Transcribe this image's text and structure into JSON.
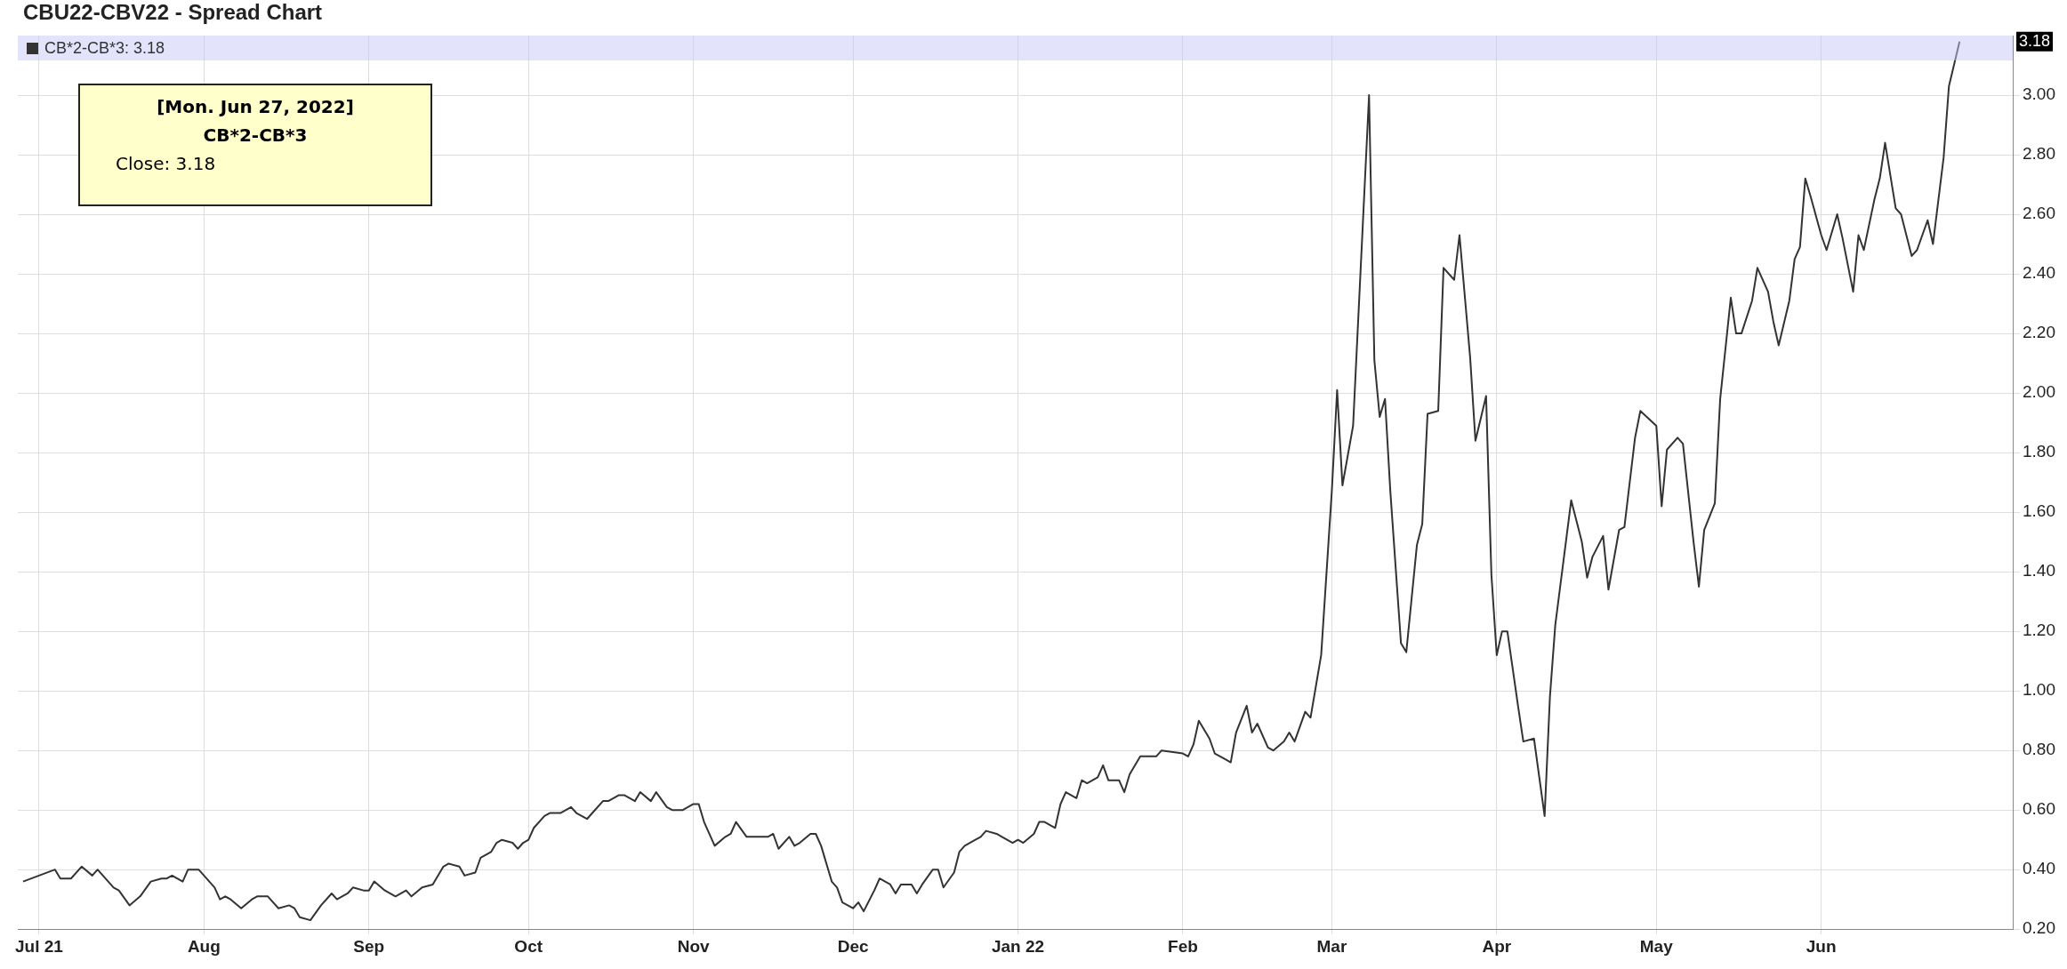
{
  "chart_data": {
    "type": "line",
    "title": "CBU22-CBV22 - Spread Chart",
    "annotations": [
      "[Mon. Jun 27, 2022]",
      "CB*2-CB*3",
      "Close: 3.18",
      "3.18"
    ],
    "legend": "top left",
    "grid": true,
    "marker": "none",
    "line_style": "solid",
    "xlim": [
      "2021-06-27",
      "2022-07-07"
    ],
    "xticks": [
      {
        "value": "2021-07-01",
        "label": "Jul 21"
      },
      {
        "value": "2021-08-01",
        "label": "Aug"
      },
      {
        "value": "2021-09-01",
        "label": "Sep"
      },
      {
        "value": "2021-10-01",
        "label": "Oct"
      },
      {
        "value": "2021-11-01",
        "label": "Nov"
      },
      {
        "value": "2021-12-01",
        "label": "Dec"
      },
      {
        "value": "2022-01-01",
        "label": "Jan 22"
      },
      {
        "value": "2022-02-01",
        "label": "Feb"
      },
      {
        "value": "2022-03-01",
        "label": "Mar"
      },
      {
        "value": "2022-04-01",
        "label": "Apr"
      },
      {
        "value": "2022-05-01",
        "label": "May"
      },
      {
        "value": "2022-06-01",
        "label": "Jun"
      }
    ],
    "ylim": [
      0.2,
      3.2
    ],
    "yticks": [
      {
        "value": 0.2,
        "label": "0.20"
      },
      {
        "value": 0.4,
        "label": "0.40"
      },
      {
        "value": 0.6,
        "label": "0.60"
      },
      {
        "value": 0.8,
        "label": "0.80"
      },
      {
        "value": 1.0,
        "label": "1.00"
      },
      {
        "value": 1.2,
        "label": "1.20"
      },
      {
        "value": 1.4,
        "label": "1.40"
      },
      {
        "value": 1.6,
        "label": "1.60"
      },
      {
        "value": 1.8,
        "label": "1.80"
      },
      {
        "value": 2.0,
        "label": "2.00"
      },
      {
        "value": 2.2,
        "label": "2.20"
      },
      {
        "value": 2.4,
        "label": "2.40"
      },
      {
        "value": 2.6,
        "label": "2.60"
      },
      {
        "value": 2.8,
        "label": "2.80"
      },
      {
        "value": 3.0,
        "label": "3.00"
      }
    ],
    "x": [
      "2021-06-28",
      "2021-07-01",
      "2021-07-04",
      "2021-07-05",
      "2021-07-07",
      "2021-07-09",
      "2021-07-11",
      "2021-07-12",
      "2021-07-15",
      "2021-07-16",
      "2021-07-18",
      "2021-07-20",
      "2021-07-22",
      "2021-07-24",
      "2021-07-25",
      "2021-07-26",
      "2021-07-28",
      "2021-07-29",
      "2021-07-31",
      "2021-08-03",
      "2021-08-04",
      "2021-08-05",
      "2021-08-06",
      "2021-08-08",
      "2021-08-10",
      "2021-08-11",
      "2021-08-13",
      "2021-08-15",
      "2021-08-17",
      "2021-08-18",
      "2021-08-19",
      "2021-08-21",
      "2021-08-23",
      "2021-08-25",
      "2021-08-26",
      "2021-08-28",
      "2021-08-29",
      "2021-08-31",
      "2021-09-01",
      "2021-09-02",
      "2021-09-04",
      "2021-09-06",
      "2021-09-08",
      "2021-09-09",
      "2021-09-11",
      "2021-09-13",
      "2021-09-15",
      "2021-09-16",
      "2021-09-18",
      "2021-09-19",
      "2021-09-21",
      "2021-09-22",
      "2021-09-24",
      "2021-09-25",
      "2021-09-26",
      "2021-09-28",
      "2021-09-29",
      "2021-09-30",
      "2021-10-01",
      "2021-10-02",
      "2021-10-04",
      "2021-10-05",
      "2021-10-07",
      "2021-10-09",
      "2021-10-10",
      "2021-10-12",
      "2021-10-13",
      "2021-10-15",
      "2021-10-16",
      "2021-10-18",
      "2021-10-19",
      "2021-10-21",
      "2021-10-22",
      "2021-10-24",
      "2021-10-25",
      "2021-10-27",
      "2021-10-28",
      "2021-10-30",
      "2021-11-01",
      "2021-11-02",
      "2021-11-03",
      "2021-11-05",
      "2021-11-07",
      "2021-11-08",
      "2021-11-09",
      "2021-11-11",
      "2021-11-15",
      "2021-11-16",
      "2021-11-17",
      "2021-11-19",
      "2021-11-20",
      "2021-11-21",
      "2021-11-23",
      "2021-11-24",
      "2021-11-25",
      "2021-11-27",
      "2021-11-28",
      "2021-11-29",
      "2021-12-01",
      "2021-12-02",
      "2021-12-03",
      "2021-12-05",
      "2021-12-06",
      "2021-12-08",
      "2021-12-09",
      "2021-12-10",
      "2021-12-12",
      "2021-12-13",
      "2021-12-14",
      "2021-12-16",
      "2021-12-17",
      "2021-12-18",
      "2021-12-20",
      "2021-12-21",
      "2021-12-22",
      "2021-12-24",
      "2021-12-25",
      "2021-12-26",
      "2021-12-28",
      "2021-12-29",
      "2021-12-31",
      "2022-01-01",
      "2022-01-02",
      "2022-01-04",
      "2022-01-05",
      "2022-01-06",
      "2022-01-08",
      "2022-01-09",
      "2022-01-10",
      "2022-01-12",
      "2022-01-13",
      "2022-01-14",
      "2022-01-16",
      "2022-01-17",
      "2022-01-18",
      "2022-01-20",
      "2022-01-21",
      "2022-01-22",
      "2022-01-24",
      "2022-01-25",
      "2022-01-27",
      "2022-01-28",
      "2022-02-01",
      "2022-02-02",
      "2022-02-03",
      "2022-02-04",
      "2022-02-06",
      "2022-02-07",
      "2022-02-09",
      "2022-02-10",
      "2022-02-11",
      "2022-02-13",
      "2022-02-14",
      "2022-02-15",
      "2022-02-17",
      "2022-02-18",
      "2022-02-20",
      "2022-02-21",
      "2022-02-22",
      "2022-02-24",
      "2022-02-25",
      "2022-02-27",
      "2022-03-01",
      "2022-03-02",
      "2022-03-03",
      "2022-03-05",
      "2022-03-08",
      "2022-03-09",
      "2022-03-10",
      "2022-03-11",
      "2022-03-12",
      "2022-03-14",
      "2022-03-15",
      "2022-03-17",
      "2022-03-18",
      "2022-03-19",
      "2022-03-21",
      "2022-03-22",
      "2022-03-24",
      "2022-03-25",
      "2022-03-27",
      "2022-03-28",
      "2022-03-30",
      "2022-03-31",
      "2022-04-01",
      "2022-04-02",
      "2022-04-03",
      "2022-04-05",
      "2022-04-06",
      "2022-04-08",
      "2022-04-10",
      "2022-04-11",
      "2022-04-12",
      "2022-04-14",
      "2022-04-15",
      "2022-04-17",
      "2022-04-18",
      "2022-04-19",
      "2022-04-21",
      "2022-04-22",
      "2022-04-24",
      "2022-04-25",
      "2022-04-27",
      "2022-04-28",
      "2022-05-01",
      "2022-05-02",
      "2022-05-03",
      "2022-05-05",
      "2022-05-06",
      "2022-05-08",
      "2022-05-09",
      "2022-05-10",
      "2022-05-12",
      "2022-05-13",
      "2022-05-15",
      "2022-05-16",
      "2022-05-17",
      "2022-05-19",
      "2022-05-20",
      "2022-05-22",
      "2022-05-23",
      "2022-05-24",
      "2022-05-26",
      "2022-05-27",
      "2022-05-28",
      "2022-05-29",
      "2022-05-30",
      "2022-06-01",
      "2022-06-02",
      "2022-06-04",
      "2022-06-05",
      "2022-06-07",
      "2022-06-08",
      "2022-06-09",
      "2022-06-11",
      "2022-06-12",
      "2022-06-13",
      "2022-06-15",
      "2022-06-16",
      "2022-06-18",
      "2022-06-19",
      "2022-06-21",
      "2022-06-22",
      "2022-06-24",
      "2022-06-25",
      "2022-06-27"
    ],
    "series": [
      {
        "name": "CB*2-CB*3: 3.18",
        "color": "#333333",
        "values": [
          0.36,
          0.38,
          0.4,
          0.37,
          0.37,
          0.41,
          0.38,
          0.4,
          0.34,
          0.33,
          0.28,
          0.31,
          0.36,
          0.37,
          0.37,
          0.38,
          0.36,
          0.4,
          0.4,
          0.34,
          0.3,
          0.31,
          0.3,
          0.27,
          0.3,
          0.31,
          0.31,
          0.27,
          0.28,
          0.27,
          0.24,
          0.23,
          0.28,
          0.32,
          0.3,
          0.32,
          0.34,
          0.33,
          0.33,
          0.36,
          0.33,
          0.31,
          0.33,
          0.31,
          0.34,
          0.35,
          0.41,
          0.42,
          0.41,
          0.38,
          0.39,
          0.44,
          0.46,
          0.49,
          0.5,
          0.49,
          0.47,
          0.49,
          0.5,
          0.54,
          0.58,
          0.59,
          0.59,
          0.61,
          0.59,
          0.57,
          0.59,
          0.63,
          0.63,
          0.65,
          0.65,
          0.63,
          0.66,
          0.63,
          0.66,
          0.61,
          0.6,
          0.6,
          0.62,
          0.62,
          0.56,
          0.48,
          0.51,
          0.52,
          0.56,
          0.51,
          0.51,
          0.52,
          0.47,
          0.51,
          0.48,
          0.49,
          0.52,
          0.52,
          0.48,
          0.36,
          0.34,
          0.29,
          0.27,
          0.29,
          0.26,
          0.33,
          0.37,
          0.35,
          0.32,
          0.35,
          0.35,
          0.32,
          0.35,
          0.4,
          0.4,
          0.34,
          0.39,
          0.46,
          0.48,
          0.5,
          0.51,
          0.53,
          0.52,
          0.51,
          0.49,
          0.5,
          0.49,
          0.52,
          0.56,
          0.56,
          0.54,
          0.62,
          0.66,
          0.64,
          0.7,
          0.69,
          0.71,
          0.75,
          0.7,
          0.7,
          0.66,
          0.72,
          0.78,
          0.78,
          0.78,
          0.8,
          0.79,
          0.78,
          0.82,
          0.9,
          0.84,
          0.79,
          0.77,
          0.76,
          0.86,
          0.95,
          0.86,
          0.89,
          0.81,
          0.8,
          0.83,
          0.86,
          0.83,
          0.93,
          0.91,
          1.12,
          1.67,
          2.01,
          1.69,
          1.89,
          3.0,
          2.11,
          1.92,
          1.98,
          1.67,
          1.16,
          1.13,
          1.49,
          1.56,
          1.93,
          1.94,
          2.42,
          2.38,
          2.53,
          2.12,
          1.84,
          1.99,
          1.39,
          1.12,
          1.2,
          1.2,
          0.95,
          0.83,
          0.84,
          0.58,
          0.98,
          1.22,
          1.5,
          1.64,
          1.5,
          1.38,
          1.45,
          1.52,
          1.34,
          1.54,
          1.55,
          1.85,
          1.94,
          1.89,
          1.62,
          1.81,
          1.85,
          1.83,
          1.5,
          1.35,
          1.54,
          1.63,
          1.98,
          2.32,
          2.2,
          2.2,
          2.31,
          2.42,
          2.34,
          2.24,
          2.16,
          2.31,
          2.45,
          2.49,
          2.72,
          2.66,
          2.53,
          2.48,
          2.6,
          2.52,
          2.34,
          2.53,
          2.48,
          2.65,
          2.72,
          2.84,
          2.62,
          2.6,
          2.46,
          2.48,
          2.58,
          2.5,
          2.79,
          3.03,
          3.18
        ]
      }
    ]
  }
}
